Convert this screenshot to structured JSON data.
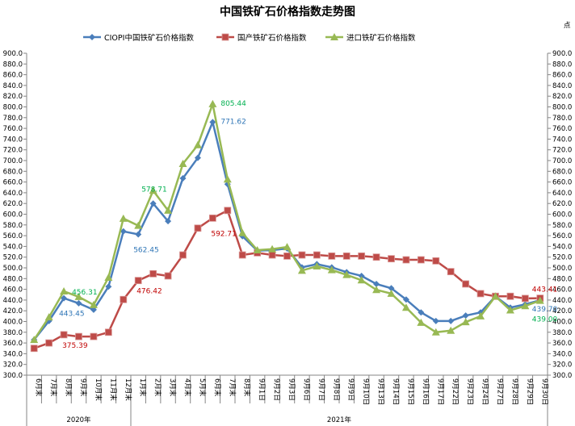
{
  "chart_data": {
    "type": "line",
    "title": "中国铁矿石价格指数走势图",
    "unit_label": "点",
    "ylim": [
      300,
      900
    ],
    "ytick_step": 20,
    "legend_position": "top",
    "categories": [
      "6月末",
      "7月末",
      "8月末",
      "9月末",
      "10月末",
      "11月末",
      "12月末",
      "1月末",
      "2月末",
      "3月末",
      "4月末",
      "5月末",
      "6月末",
      "7月末",
      "8月末",
      "9月1日",
      "9月2日",
      "9月3日",
      "9月6日",
      "9月7日",
      "9月8日",
      "9月9日",
      "9月10日",
      "9月13日",
      "9月14日",
      "9月15日",
      "9月16日",
      "9月17日",
      "9月22日",
      "9月23日",
      "9月24日",
      "9月27日",
      "9月28日",
      "9月29日",
      "9月30日"
    ],
    "groups": [
      {
        "label": "2020年",
        "from": 0,
        "to": 6
      },
      {
        "label": "2021年",
        "from": 7,
        "to": 34
      }
    ],
    "series": [
      {
        "name": "CIOPI中国铁矿石价格指数",
        "color": "#4a7ebb",
        "marker": "diamond",
        "values": [
          366,
          401,
          443.45,
          434,
          422,
          465,
          568,
          562.45,
          620,
          587,
          667,
          705,
          771.62,
          656,
          559,
          532,
          533,
          536,
          501,
          507,
          501,
          492,
          485,
          470,
          462,
          441,
          417,
          401,
          401,
          411,
          417,
          447,
          426,
          432,
          439.7
        ],
        "labels": [
          {
            "index": 2,
            "text": "443.45"
          },
          {
            "index": 7,
            "text": "562.45"
          },
          {
            "index": 12,
            "text": "771.62"
          },
          {
            "index": 34,
            "text": "439.70"
          }
        ]
      },
      {
        "name": "国产铁矿石价格指数",
        "color": "#be4b48",
        "marker": "square",
        "values": [
          350,
          360,
          375.39,
          372,
          372,
          380,
          441,
          476.42,
          489,
          485,
          524,
          574,
          592.71,
          607,
          524,
          528,
          524,
          522,
          524,
          524,
          522,
          522,
          522,
          520,
          517,
          515,
          515,
          513,
          493,
          470,
          452,
          447,
          447,
          443,
          443.41
        ],
        "labels": [
          {
            "index": 2,
            "text": "375.39"
          },
          {
            "index": 7,
            "text": "476.42"
          },
          {
            "index": 12,
            "text": "592.71"
          },
          {
            "index": 34,
            "text": "443.41"
          }
        ]
      },
      {
        "name": "进口铁矿石价格指数",
        "color": "#98b954",
        "marker": "triangle",
        "values": [
          366,
          408,
          456.31,
          446,
          431,
          482,
          592,
          578.71,
          644,
          607,
          694,
          729,
          805.44,
          665,
          565,
          533,
          535,
          539,
          495,
          503,
          496,
          487,
          477,
          459,
          452,
          426,
          398,
          380,
          383,
          399,
          410,
          447,
          421,
          429,
          439.0
        ],
        "labels": [
          {
            "index": 2,
            "text": "456.31"
          },
          {
            "index": 7,
            "text": "578.71"
          },
          {
            "index": 12,
            "text": "805.44"
          },
          {
            "index": 34,
            "text": "439.00"
          }
        ]
      }
    ],
    "label_colors": {
      "CIOPI中国铁矿石价格指数": "#2e75b6",
      "国产铁矿石价格指数": "#c00000",
      "进口铁矿石价格指数": "#00b050"
    }
  }
}
